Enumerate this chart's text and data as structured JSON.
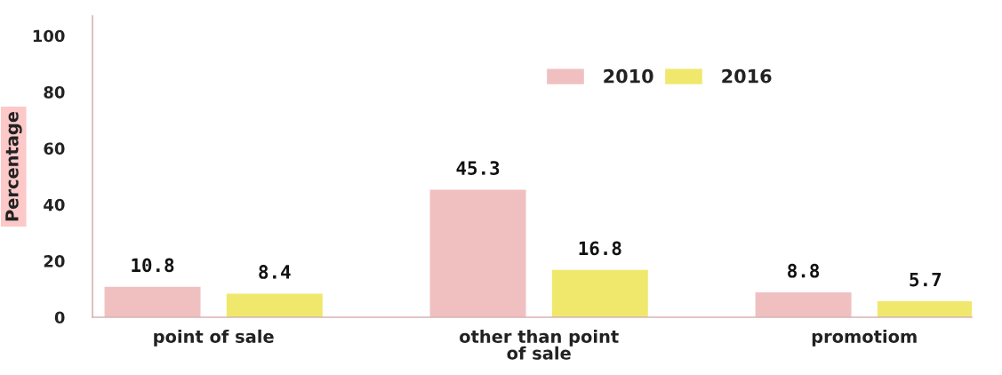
{
  "chart_data": {
    "type": "bar",
    "categories": [
      "point of sale",
      "other than point\nof sale",
      "promotiom"
    ],
    "series": [
      {
        "name": "2010",
        "color": "#f0c0c0",
        "values": [
          10.8,
          45.3,
          8.8
        ]
      },
      {
        "name": "2016",
        "color": "#f0e86c",
        "values": [
          8.4,
          16.8,
          5.7
        ]
      }
    ],
    "ylabel": "Percentage",
    "ylim": [
      0,
      107
    ],
    "yticks": [
      0,
      20,
      40,
      60,
      80,
      100
    ],
    "grid": false,
    "legend": "top",
    "data_labels": true
  }
}
